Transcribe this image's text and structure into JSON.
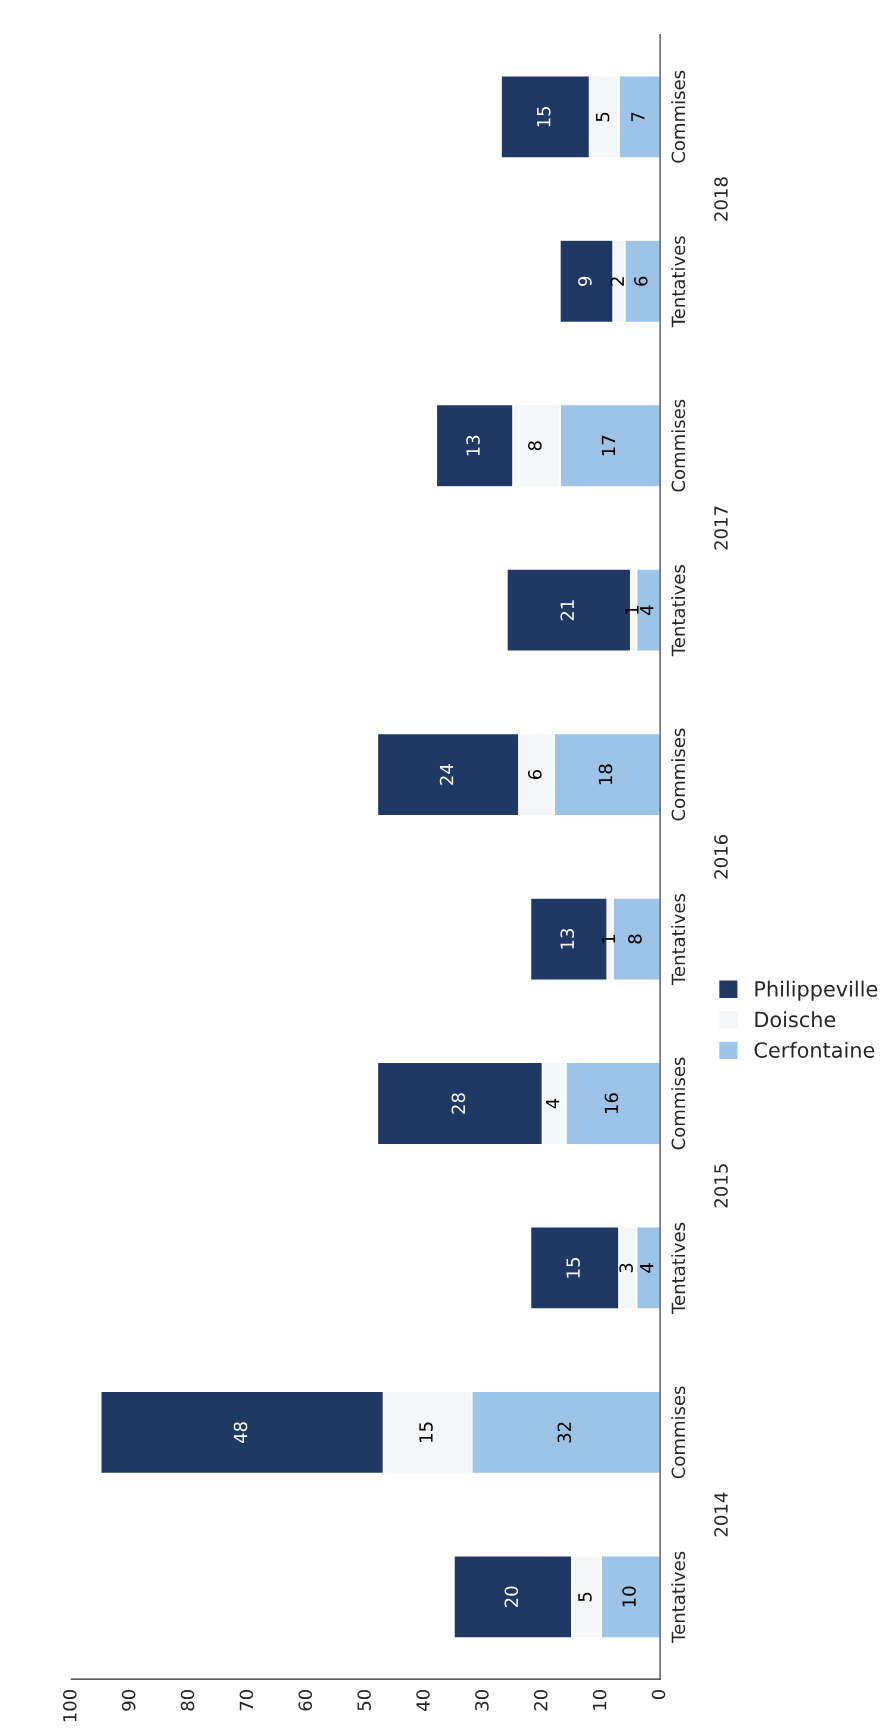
{
  "chart_data": {
    "type": "bar",
    "orientation": "horizontal",
    "stacked": true,
    "categories": [
      "Commises",
      "Tentatives",
      "Commises",
      "Tentatives",
      "Commises",
      "Tentatives",
      "Commises",
      "Tentatives",
      "Commises",
      "Tentatives"
    ],
    "series": [
      {
        "name": "Cerfontaine",
        "color": "#9dc3e6",
        "values": [
          7,
          6,
          17,
          4,
          18,
          8,
          16,
          4,
          32,
          10
        ]
      },
      {
        "name": "Doische",
        "color": "#f4f6f8",
        "values": [
          5,
          2,
          8,
          1,
          6,
          1,
          4,
          3,
          15,
          5
        ]
      },
      {
        "name": "Philippeville",
        "color": "#1f3864",
        "values": [
          15,
          9,
          13,
          21,
          24,
          13,
          28,
          15,
          48,
          20
        ]
      }
    ],
    "annotations": [
      "2018",
      "2017",
      "2016",
      "2015",
      "2014"
    ],
    "xlim": [
      100,
      0
    ],
    "xticks": [
      0,
      10,
      20,
      30,
      40,
      50,
      60,
      70,
      80,
      90,
      100
    ],
    "data_labels": true,
    "legend": "right",
    "grid": false
  }
}
